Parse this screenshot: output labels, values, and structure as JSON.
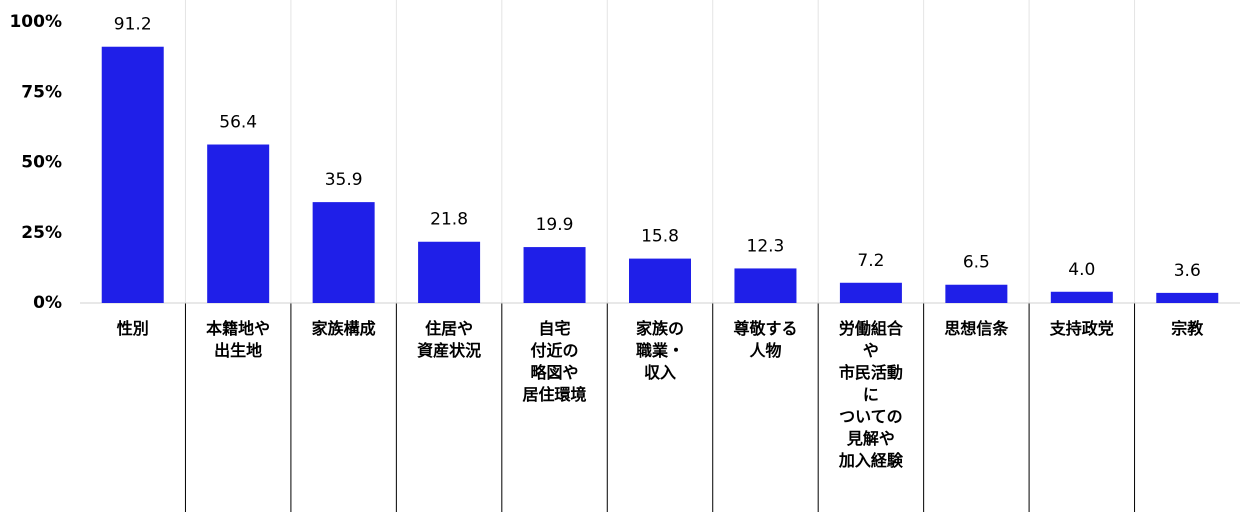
{
  "chart_data": {
    "type": "bar",
    "categories": [
      "性別",
      "本籍地や\n出生地",
      "家族構成",
      "住居や\n資産状況",
      "自宅\n付近の\n略図や\n居住環境",
      "家族の\n職業・\n収入",
      "尊敬する\n人物",
      "労働組合\nや\n市民活動\nに\nついての\n見解や\n加入経験",
      "思想信条",
      "支持政党",
      "宗教"
    ],
    "values": [
      91.2,
      56.4,
      35.9,
      21.8,
      19.9,
      15.8,
      12.3,
      7.2,
      6.5,
      4.0,
      3.6
    ],
    "value_labels": [
      "91.2",
      "56.4",
      "35.9",
      "21.8",
      "19.9",
      "15.8",
      "12.3",
      "7.2",
      "6.5",
      "4.0",
      "3.6"
    ],
    "color": "#1f1fe8",
    "ylim": [
      0,
      100
    ],
    "yticks": [
      {
        "value": 0,
        "label": "0%"
      },
      {
        "value": 25,
        "label": "25%"
      },
      {
        "value": 50,
        "label": "50%"
      },
      {
        "value": 75,
        "label": "75%"
      },
      {
        "value": 100,
        "label": "100%"
      }
    ]
  }
}
